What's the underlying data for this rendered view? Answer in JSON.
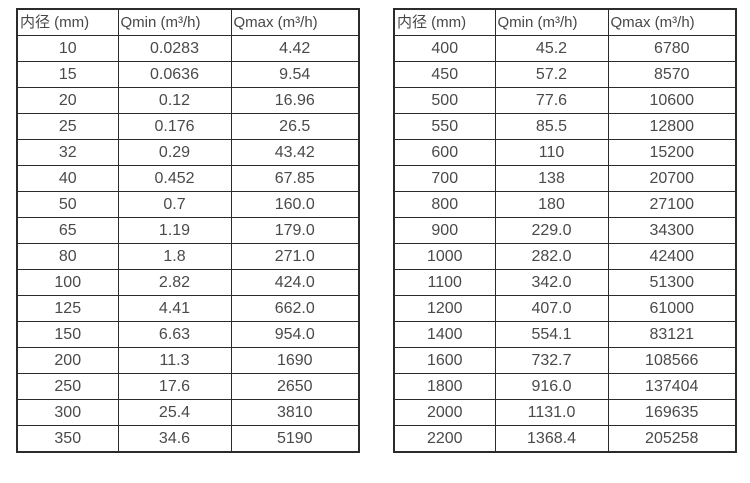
{
  "page": {
    "background_color": "#ffffff",
    "border_color": "#2b2b2b",
    "text_color": "#474747"
  },
  "tables": [
    {
      "name": "flow-rate-table-small-diameters",
      "headers": [
        "内径 (mm)",
        "Qmin (m³/h)",
        "Qmax (m³/h)"
      ],
      "rows": [
        [
          "10",
          "0.0283",
          "4.42"
        ],
        [
          "15",
          "0.0636",
          "9.54"
        ],
        [
          "20",
          "0.12",
          "16.96"
        ],
        [
          "25",
          "0.176",
          "26.5"
        ],
        [
          "32",
          "0.29",
          "43.42"
        ],
        [
          "40",
          "0.452",
          "67.85"
        ],
        [
          "50",
          "0.7",
          "160.0"
        ],
        [
          "65",
          "1.19",
          "179.0"
        ],
        [
          "80",
          "1.8",
          "271.0"
        ],
        [
          "100",
          "2.82",
          "424.0"
        ],
        [
          "125",
          "4.41",
          "662.0"
        ],
        [
          "150",
          "6.63",
          "954.0"
        ],
        [
          "200",
          "11.3",
          "1690"
        ],
        [
          "250",
          "17.6",
          "2650"
        ],
        [
          "300",
          "25.4",
          "3810"
        ],
        [
          "350",
          "34.6",
          "5190"
        ]
      ]
    },
    {
      "name": "flow-rate-table-large-diameters",
      "headers": [
        "内径 (mm)",
        "Qmin (m³/h)",
        "Qmax (m³/h)"
      ],
      "rows": [
        [
          "400",
          "45.2",
          "6780"
        ],
        [
          "450",
          "57.2",
          "8570"
        ],
        [
          "500",
          "77.6",
          "10600"
        ],
        [
          "550",
          "85.5",
          "12800"
        ],
        [
          "600",
          "110",
          "15200"
        ],
        [
          "700",
          "138",
          "20700"
        ],
        [
          "800",
          "180",
          "27100"
        ],
        [
          "900",
          "229.0",
          "34300"
        ],
        [
          "1000",
          "282.0",
          "42400"
        ],
        [
          "1100",
          "342.0",
          "51300"
        ],
        [
          "1200",
          "407.0",
          "61000"
        ],
        [
          "1400",
          "554.1",
          "83121"
        ],
        [
          "1600",
          "732.7",
          "108566"
        ],
        [
          "1800",
          "916.0",
          "137404"
        ],
        [
          "2000",
          "1131.0",
          "169635"
        ],
        [
          "2200",
          "1368.4",
          "205258"
        ]
      ]
    }
  ]
}
